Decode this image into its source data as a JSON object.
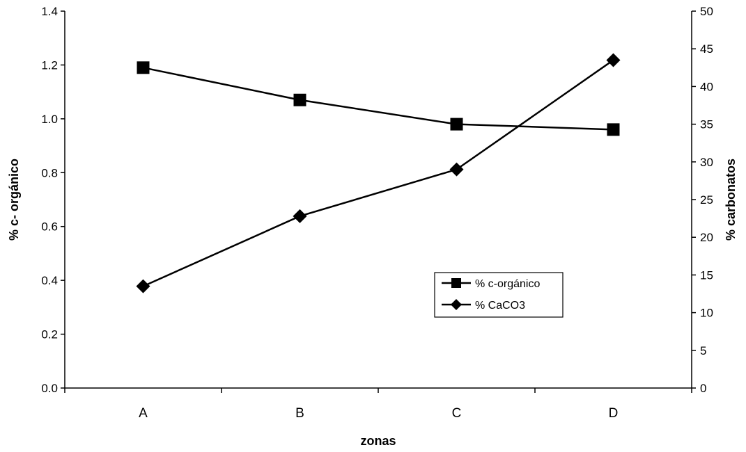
{
  "chart_data": {
    "type": "line",
    "title": "",
    "xlabel": "zonas",
    "ylabel_left": "% c- orgánico",
    "ylabel_right": "% carbonatos",
    "categories": [
      "A",
      "B",
      "C",
      "D"
    ],
    "ylim_left": [
      0,
      1.4
    ],
    "yticks_left": [
      "0.0",
      "0.2",
      "0.4",
      "0.6",
      "0.8",
      "1.0",
      "1.2",
      "1.4"
    ],
    "ylim_right": [
      0,
      50
    ],
    "yticks_right": [
      "0",
      "5",
      "10",
      "15",
      "20",
      "25",
      "30",
      "35",
      "40",
      "45",
      "50"
    ],
    "grid": false,
    "legend_position": "center-right",
    "series": [
      {
        "name": "% c-orgánico",
        "axis": "left",
        "marker": "square",
        "color": "#000000",
        "values": [
          1.19,
          1.07,
          0.98,
          0.96
        ]
      },
      {
        "name": "% CaCO3",
        "axis": "right",
        "marker": "diamond",
        "color": "#000000",
        "values": [
          13.5,
          22.8,
          29.0,
          43.5
        ]
      }
    ]
  }
}
